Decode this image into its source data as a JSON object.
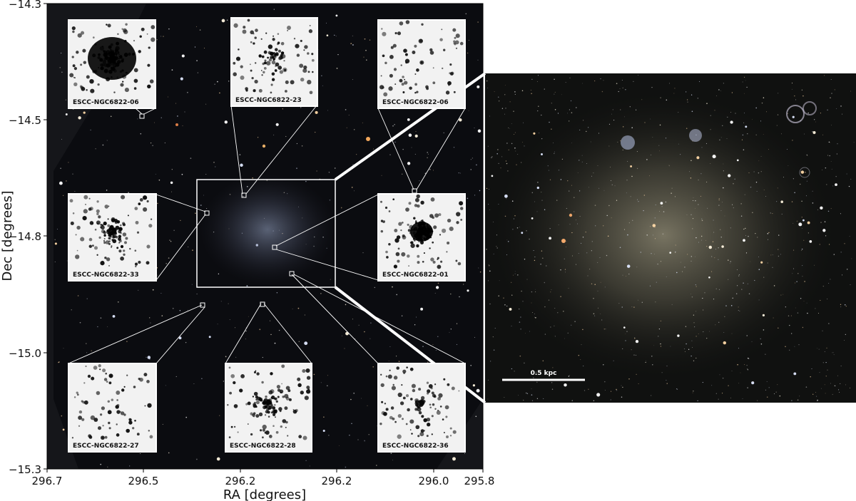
{
  "figure": {
    "xlabel": "RA [degrees]",
    "ylabel": "Dec [degrees]",
    "x_ticks": [
      "296.7",
      "296.5",
      "296.2",
      "296.2",
      "296.0",
      "295.8"
    ],
    "y_ticks": [
      "−14.3",
      "−14.5",
      "−14.8",
      "−15.0",
      "−15.3"
    ],
    "scale_bar_label": "0.5 kpc"
  },
  "cutouts": [
    {
      "label": "ESCC-NGC6822-06",
      "morph": "dense"
    },
    {
      "label": "ESCC-NGC6822-23",
      "morph": "sparse"
    },
    {
      "label": "ESCC-NGC6822-06",
      "morph": "field"
    },
    {
      "label": "ESCC-NGC6822-33",
      "morph": "medium"
    },
    {
      "label": "ESCC-NGC6822-01",
      "morph": "dense"
    },
    {
      "label": "ESCC-NGC6822-27",
      "morph": "field"
    },
    {
      "label": "ESCC-NGC6822-28",
      "morph": "medium"
    },
    {
      "label": "ESCC-NGC6822-36",
      "morph": "sparse"
    }
  ],
  "colors": {
    "mosaic_background": "#0b0c10",
    "frame_background": "#15161a",
    "outline": "#ffffff"
  }
}
